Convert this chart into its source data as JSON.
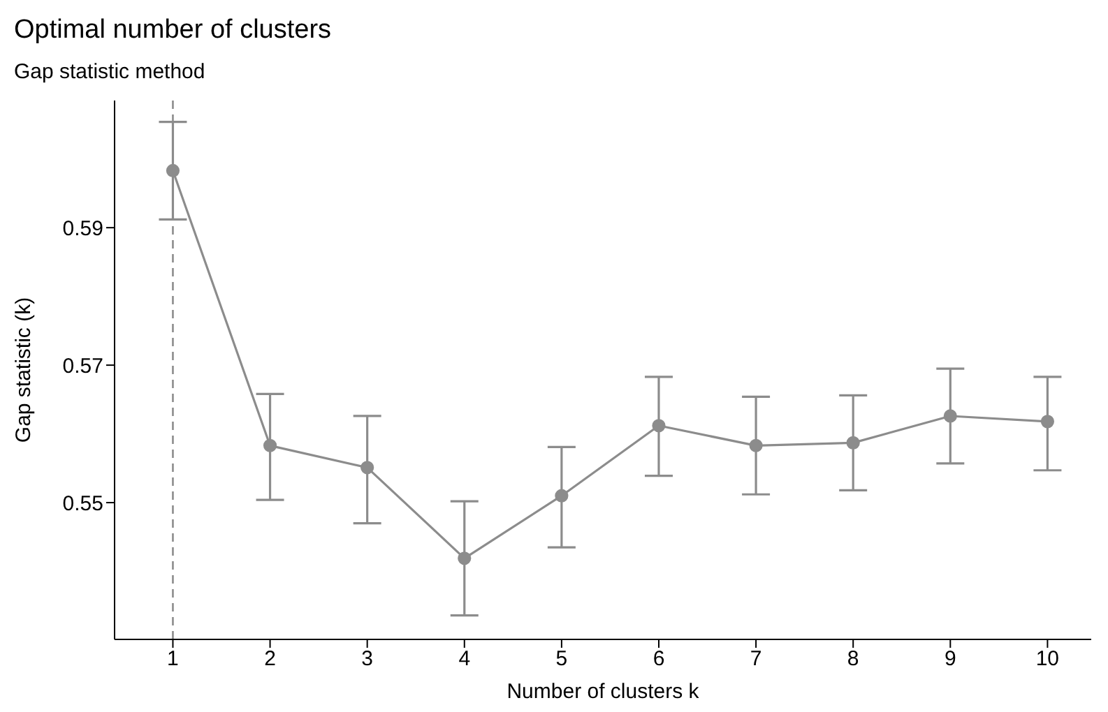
{
  "chart_data": {
    "type": "line",
    "title": "Optimal number of clusters",
    "subtitle": "Gap statistic method",
    "xlabel": "Number of clusters k",
    "ylabel": "Gap statistic (k)",
    "x": [
      1,
      2,
      3,
      4,
      5,
      6,
      7,
      8,
      9,
      10
    ],
    "series": [
      {
        "color": "#8c8c8c",
        "values": [
          0.5983,
          0.5583,
          0.5551,
          0.5419,
          0.551,
          0.5612,
          0.5583,
          0.5587,
          0.5626,
          0.5618
        ],
        "errors": [
          [
            0.5912,
            0.6054
          ],
          [
            0.5504,
            0.5658
          ],
          [
            0.547,
            0.5626
          ],
          [
            0.5336,
            0.5502
          ],
          [
            0.5435,
            0.5581
          ],
          [
            0.5539,
            0.5683
          ],
          [
            0.5512,
            0.5654
          ],
          [
            0.5518,
            0.5656
          ],
          [
            0.5557,
            0.5695
          ],
          [
            0.5547,
            0.5683
          ]
        ]
      }
    ],
    "xlim": [
      0.4,
      10.45
    ],
    "xticks": [
      1,
      2,
      3,
      4,
      5,
      6,
      7,
      8,
      9,
      10
    ],
    "ylim": [
      0.5301,
      0.6085
    ],
    "yticks": [
      0.55,
      0.57,
      0.59
    ],
    "ref_lines": [
      {
        "axis": "x",
        "value": 1,
        "color": "#8c8c8c",
        "line_style": "dashed"
      }
    ],
    "grid": false,
    "legend": false,
    "marker": "circle",
    "line_style": "solid"
  }
}
